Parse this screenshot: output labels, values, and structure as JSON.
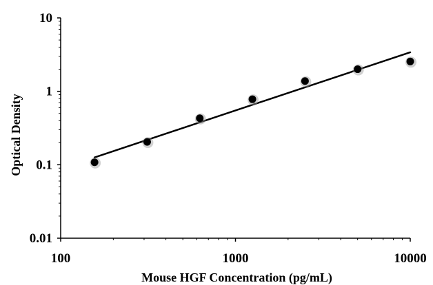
{
  "chart_data": {
    "type": "scatter",
    "title": "",
    "xlabel": "Mouse HGF Concentration (pg/mL)",
    "ylabel": "Optical Density",
    "x_scale": "log",
    "y_scale": "log",
    "xlim": [
      100,
      10000
    ],
    "ylim": [
      0.01,
      10
    ],
    "x_ticks": [
      {
        "value": 100,
        "label": "100"
      },
      {
        "value": 1000,
        "label": "1000"
      },
      {
        "value": 10000,
        "label": "10000"
      }
    ],
    "y_ticks": [
      {
        "value": 10,
        "label": "10"
      },
      {
        "value": 1,
        "label": "1"
      },
      {
        "value": 0.1,
        "label": "0.1"
      },
      {
        "value": 0.01,
        "label": "0.01"
      }
    ],
    "grid": false,
    "legend": "none",
    "series": [
      {
        "x": [
          156.25,
          312.5,
          625,
          1250,
          2500,
          5000,
          10000
        ],
        "y": [
          0.108,
          0.205,
          0.43,
          0.78,
          1.38,
          2.0,
          2.55
        ],
        "color": "#000000"
      }
    ],
    "trendline": {
      "type": "power",
      "x": [
        156.25,
        10000
      ],
      "y": [
        0.126,
        3.4
      ],
      "color": "#000000"
    }
  }
}
